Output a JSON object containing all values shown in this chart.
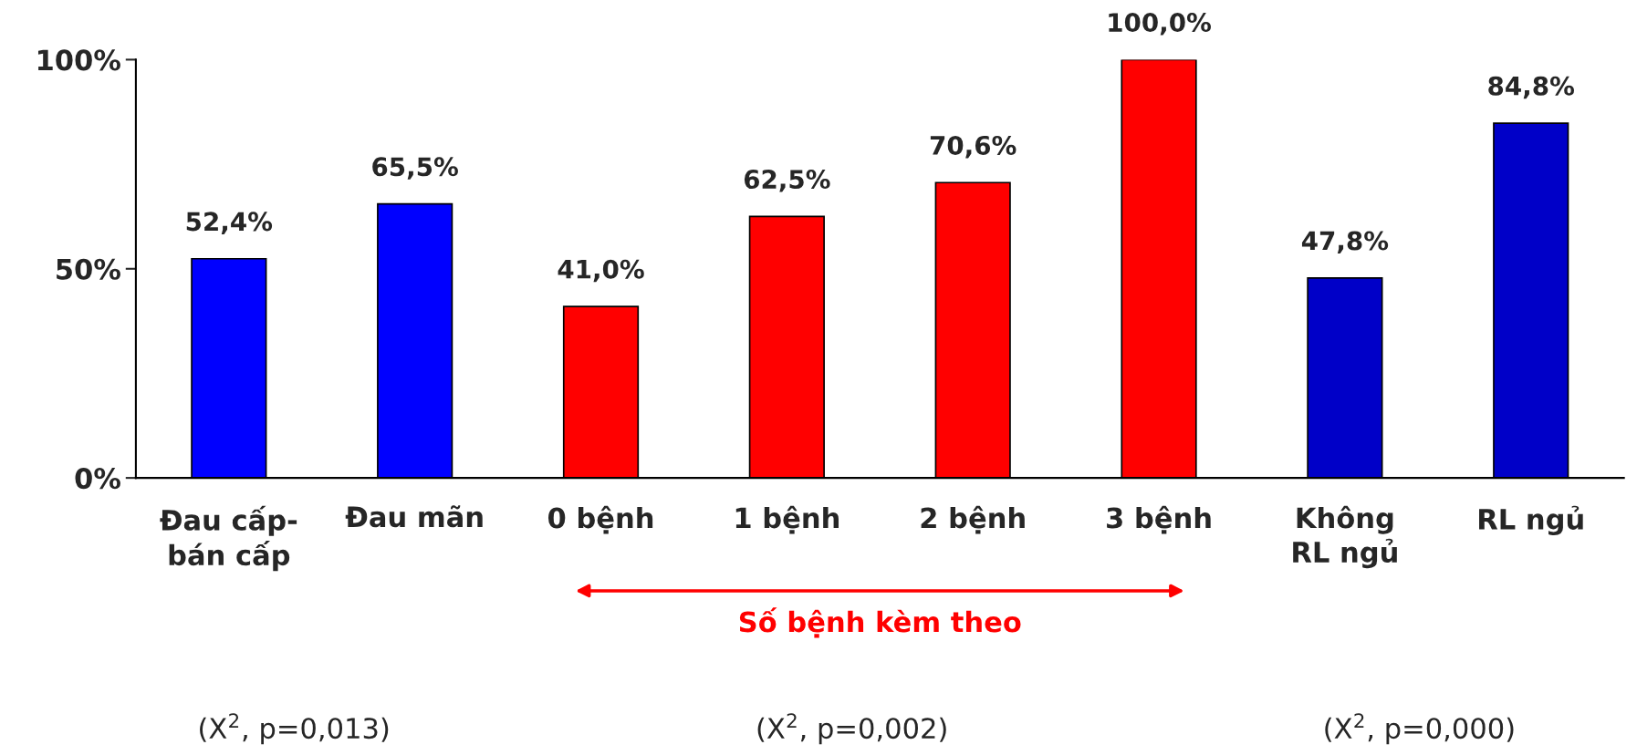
{
  "chart_data": {
    "type": "bar",
    "categories": [
      "Đau cấp-\nbán cấp",
      "Đau mãn",
      "0 bệnh",
      "1 bệnh",
      "2 bệnh",
      "3 bệnh",
      "Không\nRL ngủ",
      "RL ngủ"
    ],
    "values": [
      52.4,
      65.5,
      41.0,
      62.5,
      70.6,
      100.0,
      47.8,
      84.8
    ],
    "value_labels": [
      "52,4%",
      "65,5%",
      "41,0%",
      "62,5%",
      "70,6%",
      "100,0%",
      "47,8%",
      "84,8%"
    ],
    "colors": [
      "#0000ff",
      "#0000ff",
      "#ff0000",
      "#ff0000",
      "#ff0000",
      "#ff0000",
      "#0000c8",
      "#0000c8"
    ],
    "ylim": [
      0,
      100
    ],
    "yticks": [
      {
        "value": 0,
        "label": "0%"
      },
      {
        "value": 50,
        "label": "50%"
      },
      {
        "value": 100,
        "label": "100%"
      }
    ],
    "grid": false,
    "annotations": [
      "Số bệnh kèm theo",
      "(X$^{2}$, p=0,013)",
      "(X$^{2}$, p=0,002)",
      "(X$^{2}$, p=0,000)"
    ]
  }
}
